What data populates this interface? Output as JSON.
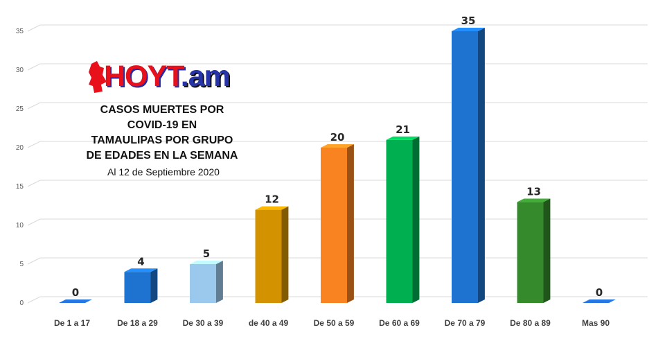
{
  "logo": {
    "prefix": "HOY",
    "middle": "T",
    "suffix": ".am"
  },
  "chart_data": {
    "type": "bar",
    "title_lines": [
      "CASOS MUERTES POR",
      "COVID-19 EN",
      "TAMAULIPAS POR GRUPO",
      "DE EDADES EN LA SEMANA"
    ],
    "subtitle": "Al 12 de Septiembre 2020",
    "categories": [
      "De 1 a 17",
      "De 18 a 29",
      "De 30 a 39",
      "de 40 a 49",
      "De 50 a 59",
      "De 60 a 69",
      "De 70 a 79",
      "De 80 a 89",
      "Mas 90"
    ],
    "values": [
      0,
      4,
      5,
      12,
      20,
      21,
      35,
      13,
      0
    ],
    "colors": [
      "#1f5fb5",
      "#1d73cf",
      "#9bc9ee",
      "#d39300",
      "#f98320",
      "#00b050",
      "#1d73cf",
      "#358b2c",
      "#1f5fb5"
    ],
    "ylim": [
      0,
      35
    ],
    "yticks": [
      0,
      5,
      10,
      15,
      20,
      25,
      30,
      35
    ],
    "xlabel": "",
    "ylabel": "",
    "grid": true,
    "legend": "none"
  }
}
